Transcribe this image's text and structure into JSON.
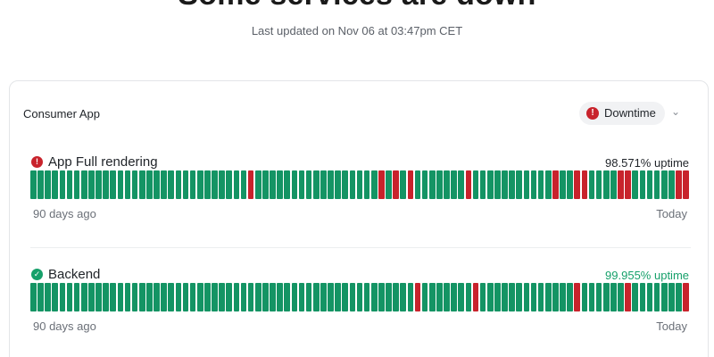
{
  "header": {
    "title": "Some services are down",
    "last_updated": "Last updated on Nov 06 at 03:47pm CET"
  },
  "group": {
    "name": "Consumer App",
    "status_label": "Downtime",
    "status_icon": "error-icon",
    "status_color": "#c8232c"
  },
  "services": [
    {
      "name": "App Full rendering",
      "status": "down",
      "uptime_label": "98.571% uptime",
      "range_start": "90 days ago",
      "range_end": "Today",
      "days": [
        "ok",
        "ok",
        "ok",
        "ok",
        "ok",
        "ok",
        "ok",
        "ok",
        "ok",
        "ok",
        "ok",
        "ok",
        "ok",
        "ok",
        "ok",
        "ok",
        "ok",
        "ok",
        "ok",
        "ok",
        "ok",
        "ok",
        "ok",
        "ok",
        "ok",
        "ok",
        "ok",
        "ok",
        "ok",
        "ok",
        "bad",
        "ok",
        "ok",
        "ok",
        "ok",
        "ok",
        "ok",
        "ok",
        "ok",
        "ok",
        "ok",
        "ok",
        "ok",
        "ok",
        "ok",
        "ok",
        "ok",
        "ok",
        "bad",
        "ok",
        "bad",
        "ok",
        "bad",
        "ok",
        "ok",
        "ok",
        "ok",
        "ok",
        "ok",
        "ok",
        "bad",
        "ok",
        "ok",
        "ok",
        "ok",
        "ok",
        "ok",
        "ok",
        "ok",
        "ok",
        "ok",
        "ok",
        "bad",
        "ok",
        "ok",
        "bad",
        "bad",
        "ok",
        "ok",
        "ok",
        "ok",
        "bad",
        "bad",
        "ok",
        "ok",
        "ok",
        "ok",
        "ok",
        "ok",
        "bad",
        "bad"
      ]
    },
    {
      "name": "Backend",
      "status": "up",
      "uptime_label": "99.955% uptime",
      "range_start": "90 days ago",
      "range_end": "Today",
      "days": [
        "ok",
        "ok",
        "ok",
        "ok",
        "ok",
        "ok",
        "ok",
        "ok",
        "ok",
        "ok",
        "ok",
        "ok",
        "ok",
        "ok",
        "ok",
        "ok",
        "ok",
        "ok",
        "ok",
        "ok",
        "ok",
        "ok",
        "ok",
        "ok",
        "ok",
        "ok",
        "ok",
        "ok",
        "ok",
        "ok",
        "ok",
        "ok",
        "ok",
        "ok",
        "ok",
        "ok",
        "ok",
        "ok",
        "ok",
        "ok",
        "ok",
        "ok",
        "ok",
        "ok",
        "ok",
        "ok",
        "ok",
        "ok",
        "ok",
        "ok",
        "ok",
        "ok",
        "ok",
        "bad",
        "ok",
        "ok",
        "ok",
        "ok",
        "ok",
        "ok",
        "ok",
        "bad",
        "ok",
        "ok",
        "ok",
        "ok",
        "ok",
        "ok",
        "ok",
        "ok",
        "ok",
        "ok",
        "ok",
        "ok",
        "ok",
        "bad",
        "ok",
        "ok",
        "ok",
        "ok",
        "ok",
        "ok",
        "bad",
        "ok",
        "ok",
        "ok",
        "ok",
        "ok",
        "ok",
        "ok",
        "bad"
      ]
    }
  ]
}
